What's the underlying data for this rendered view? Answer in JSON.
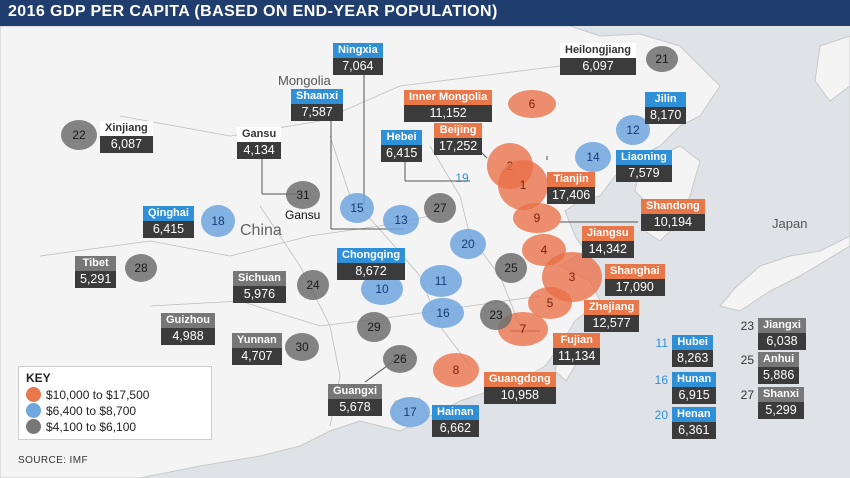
{
  "title": "2016 GDP PER CAPITA (BASED ON END-YEAR POPULATION)",
  "source": "SOURCE: IMF",
  "map_labels": {
    "mongolia": "Mongolia",
    "china": "China",
    "japan": "Japan",
    "gansu": "Gansu"
  },
  "key": {
    "title": "KEY",
    "items": [
      {
        "label": "$10,000 to $17,500",
        "color": "#e9774c"
      },
      {
        "label": "$6,400 to $8,700",
        "color": "#6fa7df"
      },
      {
        "label": "$4,100 to $6,100",
        "color": "#777777"
      }
    ]
  },
  "colors": {
    "orange": "#e9774c",
    "blue": "#2f90d8",
    "gray": "#777777",
    "title_bar": "#1f3d6d"
  },
  "provinces": [
    {
      "rank": 1,
      "name": "Tianjin",
      "value": "17,406",
      "tier": "orange"
    },
    {
      "rank": 2,
      "name": "Beijing",
      "value": "17,252",
      "tier": "orange"
    },
    {
      "rank": 3,
      "name": "Shanghai",
      "value": "17,090",
      "tier": "orange"
    },
    {
      "rank": 4,
      "name": "Jiangsu",
      "value": "14,342",
      "tier": "orange"
    },
    {
      "rank": 5,
      "name": "Zhejiang",
      "value": "12,577",
      "tier": "orange"
    },
    {
      "rank": 6,
      "name": "Inner Mongolia",
      "value": "11,152",
      "tier": "orange"
    },
    {
      "rank": 7,
      "name": "Fujian",
      "value": "11,134",
      "tier": "orange"
    },
    {
      "rank": 8,
      "name": "Guangdong",
      "value": "10,958",
      "tier": "orange"
    },
    {
      "rank": 9,
      "name": "Shandong",
      "value": "10,194",
      "tier": "orange"
    },
    {
      "rank": 10,
      "name": "Chongqing",
      "value": "8,672",
      "tier": "blue"
    },
    {
      "rank": 11,
      "name": "Hubei",
      "value": "8,263",
      "tier": "blue"
    },
    {
      "rank": 12,
      "name": "Jilin",
      "value": "8,170",
      "tier": "blue"
    },
    {
      "rank": 13,
      "name": "Shaanxi",
      "value": "7,587",
      "tier": "blue"
    },
    {
      "rank": 14,
      "name": "Liaoning",
      "value": "7,579",
      "tier": "blue"
    },
    {
      "rank": 15,
      "name": "Ningxia",
      "value": "7,064",
      "tier": "blue"
    },
    {
      "rank": 16,
      "name": "Hunan",
      "value": "6,915",
      "tier": "blue"
    },
    {
      "rank": 17,
      "name": "Hainan",
      "value": "6,662",
      "tier": "blue"
    },
    {
      "rank": 18,
      "name": "Qinghai",
      "value": "6,415",
      "tier": "blue"
    },
    {
      "rank": 19,
      "name": "Hebei",
      "value": "6,415",
      "tier": "blue"
    },
    {
      "rank": 20,
      "name": "Henan",
      "value": "6,361",
      "tier": "blue"
    },
    {
      "rank": 21,
      "name": "Heilongjiang",
      "value": "6,097",
      "tier": "gray"
    },
    {
      "rank": 22,
      "name": "Xinjiang",
      "value": "6,087",
      "tier": "gray"
    },
    {
      "rank": 23,
      "name": "Jiangxi",
      "value": "6,038",
      "tier": "gray"
    },
    {
      "rank": 24,
      "name": "Sichuan",
      "value": "5,976",
      "tier": "gray"
    },
    {
      "rank": 25,
      "name": "Anhui",
      "value": "5,886",
      "tier": "gray"
    },
    {
      "rank": 26,
      "name": "Guangxi",
      "value": "5,678",
      "tier": "gray"
    },
    {
      "rank": 27,
      "name": "Shanxi",
      "value": "5,299",
      "tier": "gray"
    },
    {
      "rank": 28,
      "name": "Tibet",
      "value": "5,291",
      "tier": "gray"
    },
    {
      "rank": 29,
      "name": "Guizhou",
      "value": "4,988",
      "tier": "gray"
    },
    {
      "rank": 30,
      "name": "Yunnan",
      "value": "4,707",
      "tier": "gray"
    },
    {
      "rank": 31,
      "name": "Gansu",
      "value": "4,134",
      "tier": "gray"
    }
  ]
}
